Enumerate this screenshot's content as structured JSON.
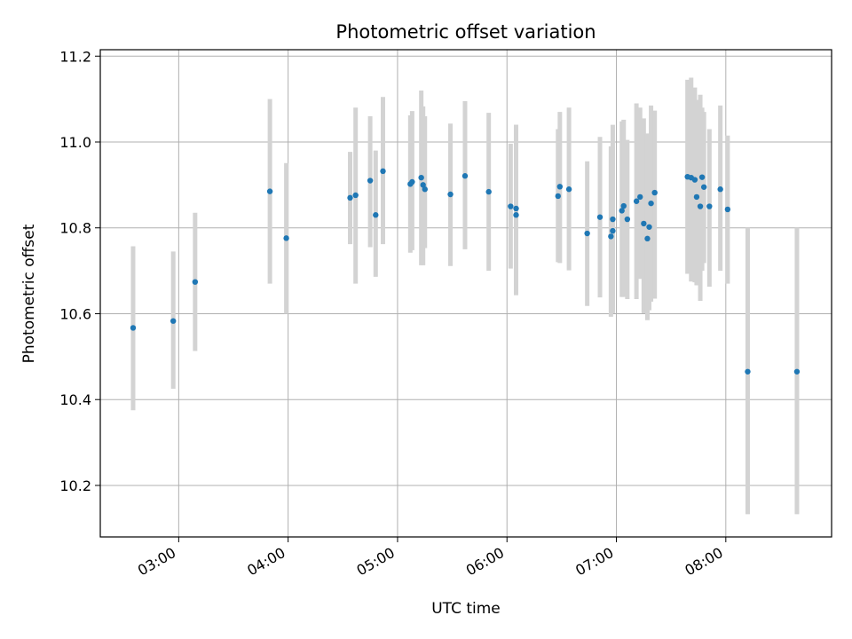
{
  "chart_data": {
    "type": "scatter",
    "title": "Photometric offset variation",
    "xlabel": "UTC time",
    "ylabel": "Photometric offset",
    "xlim": [
      "02:17",
      "08:58"
    ],
    "ylim": [
      10.08,
      11.215
    ],
    "grid": true,
    "legend": "none",
    "x_ticks": [
      "03:00",
      "04:00",
      "05:00",
      "06:00",
      "07:00",
      "08:00"
    ],
    "y_ticks": [
      "10.2",
      "10.4",
      "10.6",
      "10.8",
      "11.0",
      "11.2"
    ],
    "colors": {
      "point": "#1f77b4",
      "errorbar": "#d3d3d3",
      "grid": "#b0b0b0"
    },
    "series": [
      {
        "x": [
          "02:35",
          "02:57",
          "03:09",
          "03:50",
          "03:59",
          "04:34",
          "04:37",
          "04:45",
          "04:48",
          "04:52",
          "05:07",
          "05:08",
          "05:13",
          "05:14",
          "05:15",
          "05:29",
          "05:37",
          "05:50",
          "06:02",
          "06:05",
          "06:05",
          "06:28",
          "06:29",
          "06:34",
          "06:44",
          "06:51",
          "06:57",
          "06:58",
          "06:58",
          "07:03",
          "07:04",
          "07:06",
          "07:11",
          "07:13",
          "07:15",
          "07:17",
          "07:18",
          "07:19",
          "07:21",
          "07:39",
          "07:41",
          "07:43",
          "07:44",
          "07:46",
          "07:47",
          "07:48",
          "07:51",
          "07:57",
          "08:01",
          "08:12",
          "08:39"
        ],
        "y": [
          10.567,
          10.583,
          10.674,
          10.885,
          10.776,
          10.87,
          10.876,
          10.91,
          10.83,
          10.932,
          10.902,
          10.907,
          10.917,
          10.9,
          10.89,
          10.878,
          10.921,
          10.884,
          10.85,
          10.845,
          10.83,
          10.874,
          10.896,
          10.89,
          10.787,
          10.825,
          10.78,
          10.793,
          10.82,
          10.84,
          10.851,
          10.82,
          10.862,
          10.872,
          10.81,
          10.775,
          10.802,
          10.857,
          10.882,
          10.919,
          10.917,
          10.912,
          10.872,
          10.85,
          10.918,
          10.895,
          10.85,
          10.89,
          10.843,
          10.465,
          10.465
        ],
        "err_low": [
          10.375,
          10.425,
          10.513,
          10.67,
          10.6,
          10.762,
          10.67,
          10.755,
          10.686,
          10.762,
          10.742,
          10.748,
          10.713,
          10.713,
          10.753,
          10.711,
          10.75,
          10.7,
          10.705,
          10.643,
          10.65,
          10.72,
          10.718,
          10.701,
          10.618,
          10.638,
          10.593,
          10.605,
          10.601,
          10.639,
          10.639,
          10.634,
          10.634,
          10.681,
          10.601,
          10.585,
          10.608,
          10.628,
          10.635,
          10.693,
          10.675,
          10.673,
          10.666,
          10.63,
          10.7,
          10.718,
          10.663,
          10.7,
          10.67,
          10.133,
          10.133
        ],
        "err_high": [
          10.757,
          10.745,
          10.835,
          11.1,
          10.951,
          10.977,
          11.08,
          11.06,
          10.98,
          11.105,
          11.062,
          11.072,
          11.12,
          11.083,
          11.06,
          11.043,
          11.095,
          11.068,
          10.996,
          11.04,
          11.04,
          11.03,
          11.07,
          11.08,
          10.955,
          11.012,
          10.99,
          10.99,
          11.04,
          11.048,
          11.052,
          11.005,
          11.09,
          11.08,
          11.055,
          11.02,
          11.013,
          11.085,
          11.073,
          11.145,
          11.15,
          11.127,
          11.098,
          11.11,
          11.08,
          11.07,
          11.03,
          11.085,
          11.015,
          10.8,
          10.8
        ]
      }
    ]
  }
}
